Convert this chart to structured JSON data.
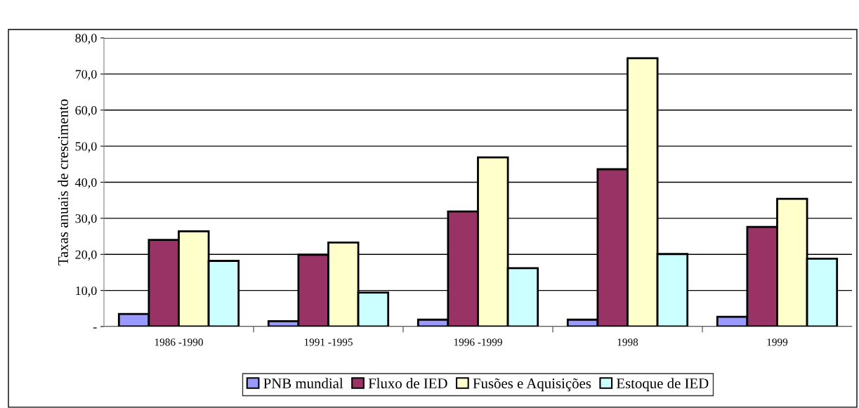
{
  "chart_data": {
    "type": "bar",
    "ylabel": "Taxas anuais de crescimento",
    "categories": [
      "1986 -1990",
      "1991 -1995",
      "1996 -1999",
      "1998",
      "1999"
    ],
    "series": [
      {
        "name": "PNB mundial",
        "color": "#9999ff",
        "values": [
          3.5,
          1.5,
          1.9,
          1.9,
          2.7
        ]
      },
      {
        "name": "Fluxo de IED",
        "color": "#993366",
        "values": [
          24.0,
          19.9,
          31.9,
          43.6,
          27.6
        ]
      },
      {
        "name": "Fusões e Aquisições",
        "color": "#ffffcc",
        "values": [
          26.4,
          23.3,
          46.9,
          74.4,
          35.4
        ]
      },
      {
        "name": "Estoque de IED",
        "color": "#ccffff",
        "values": [
          18.2,
          9.4,
          16.2,
          20.1,
          18.8
        ]
      }
    ],
    "ylim": [
      0,
      80
    ],
    "yticks": [
      {
        "value": 0,
        "label": "-"
      },
      {
        "value": 10,
        "label": "10,0"
      },
      {
        "value": 20,
        "label": "20,0"
      },
      {
        "value": 30,
        "label": "30,0"
      },
      {
        "value": 40,
        "label": "40,0"
      },
      {
        "value": 50,
        "label": "50,0"
      },
      {
        "value": 60,
        "label": "60,0"
      },
      {
        "value": 70,
        "label": "70,0"
      },
      {
        "value": 80,
        "label": "80,0"
      }
    ],
    "grid": "y",
    "legend": "bottom"
  }
}
